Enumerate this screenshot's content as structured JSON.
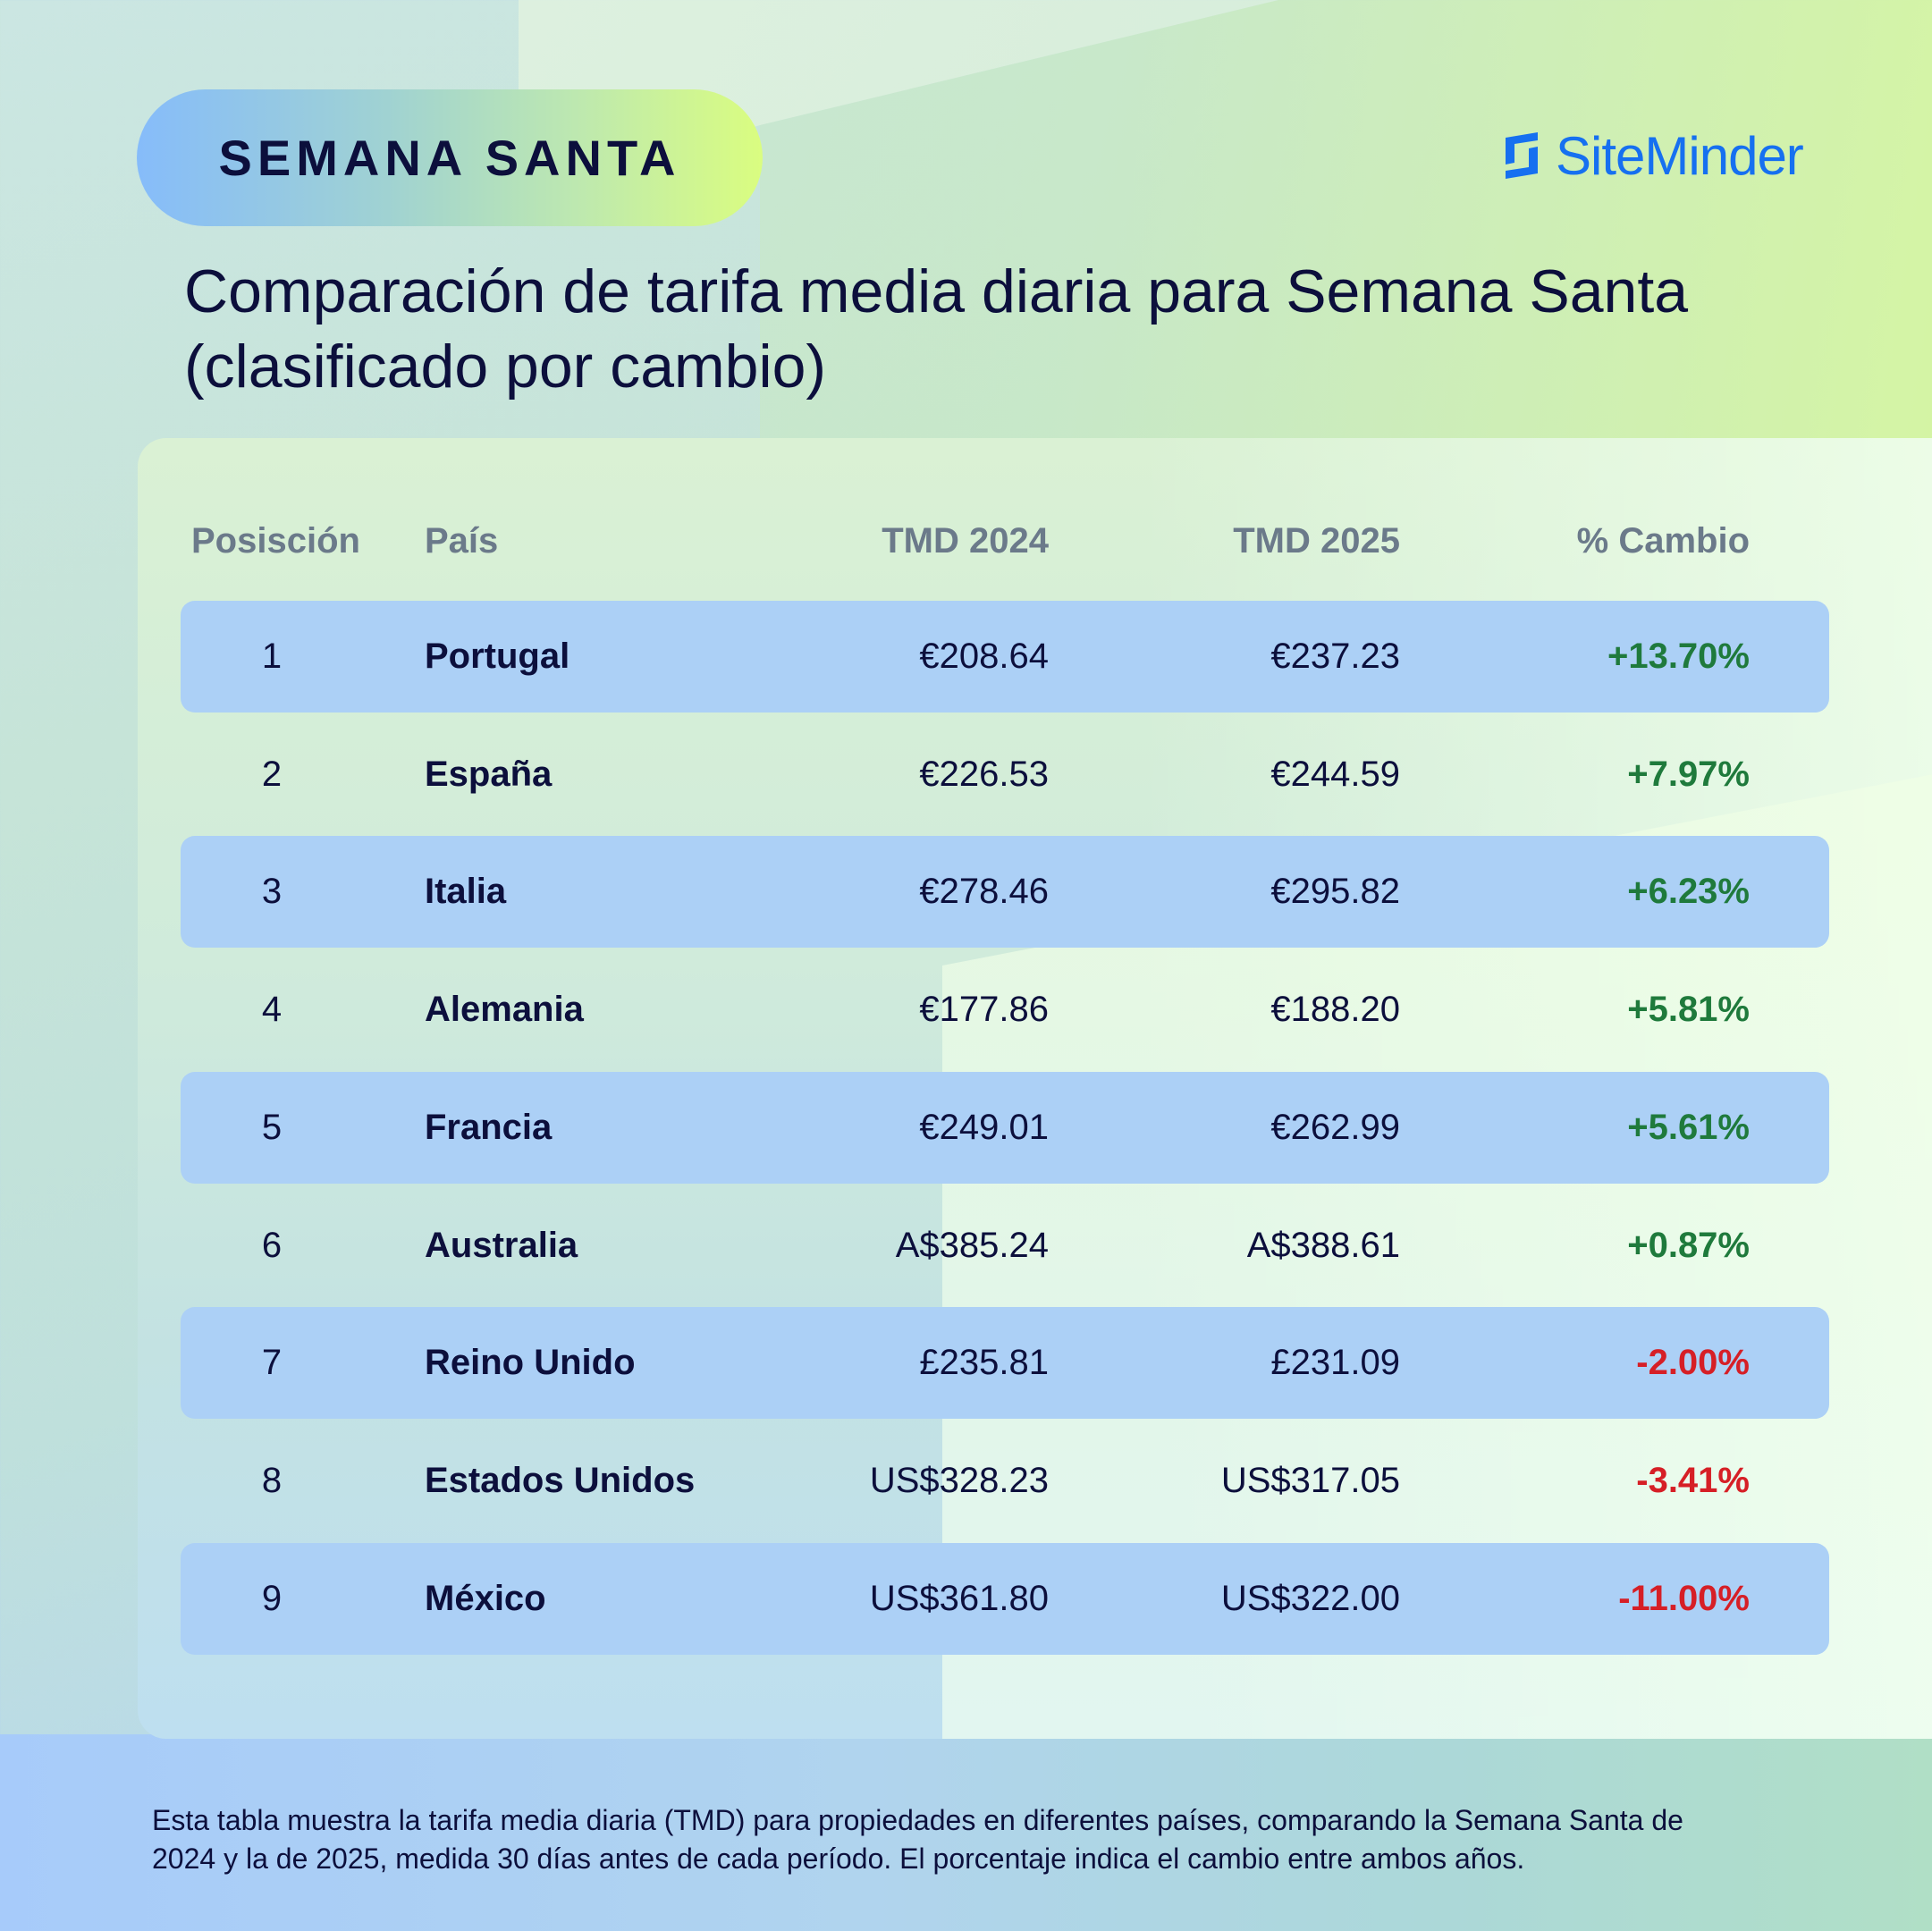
{
  "badge": {
    "label": "SEMANA SANTA"
  },
  "brand": {
    "name": "SiteMinder",
    "icon": "siteminder-logo-icon",
    "color": "#1670f0"
  },
  "title": {
    "line1": "Comparación de tarifa media diaria para Semana Santa",
    "line2": "(clasificado por cambio)"
  },
  "table": {
    "headers": {
      "position": "Posisción",
      "country": "País",
      "tmd2024": "TMD 2024",
      "tmd2025": "TMD 2025",
      "change": "% Cambio"
    },
    "rows": [
      {
        "position": "1",
        "country": "Portugal",
        "tmd2024": "€208.64",
        "tmd2025": "€237.23",
        "change": "+13.70%",
        "direction": "up"
      },
      {
        "position": "2",
        "country": "España",
        "tmd2024": "€226.53",
        "tmd2025": "€244.59",
        "change": "+7.97%",
        "direction": "up"
      },
      {
        "position": "3",
        "country": "Italia",
        "tmd2024": "€278.46",
        "tmd2025": "€295.82",
        "change": "+6.23%",
        "direction": "up"
      },
      {
        "position": "4",
        "country": "Alemania",
        "tmd2024": "€177.86",
        "tmd2025": "€188.20",
        "change": "+5.81%",
        "direction": "up"
      },
      {
        "position": "5",
        "country": "Francia",
        "tmd2024": "€249.01",
        "tmd2025": "€262.99",
        "change": "+5.61%",
        "direction": "up"
      },
      {
        "position": "6",
        "country": "Australia",
        "tmd2024": "A$385.24",
        "tmd2025": "A$388.61",
        "change": "+0.87%",
        "direction": "up"
      },
      {
        "position": "7",
        "country": "Reino Unido",
        "tmd2024": "£235.81",
        "tmd2025": "£231.09",
        "change": "-2.00%",
        "direction": "down"
      },
      {
        "position": "8",
        "country": "Estados Unidos",
        "tmd2024": "US$328.23",
        "tmd2025": "US$317.05",
        "change": "-3.41%",
        "direction": "down"
      },
      {
        "position": "9",
        "country": "México",
        "tmd2024": "US$361.80",
        "tmd2025": "US$322.00",
        "change": "-11.00%",
        "direction": "down"
      }
    ]
  },
  "colors": {
    "positive": "#1f7a3c",
    "negative": "#d61f26",
    "row_band": "#acd0f6",
    "text": "#0c0f3c"
  },
  "footnote": {
    "line1": "Esta tabla muestra la tarifa media diaria (TMD) para propiedades en diferentes países, comparando la Semana Santa de",
    "line2": "2024 y la de 2025, medida 30 días antes de cada período. El porcentaje indica el cambio entre ambos años."
  }
}
